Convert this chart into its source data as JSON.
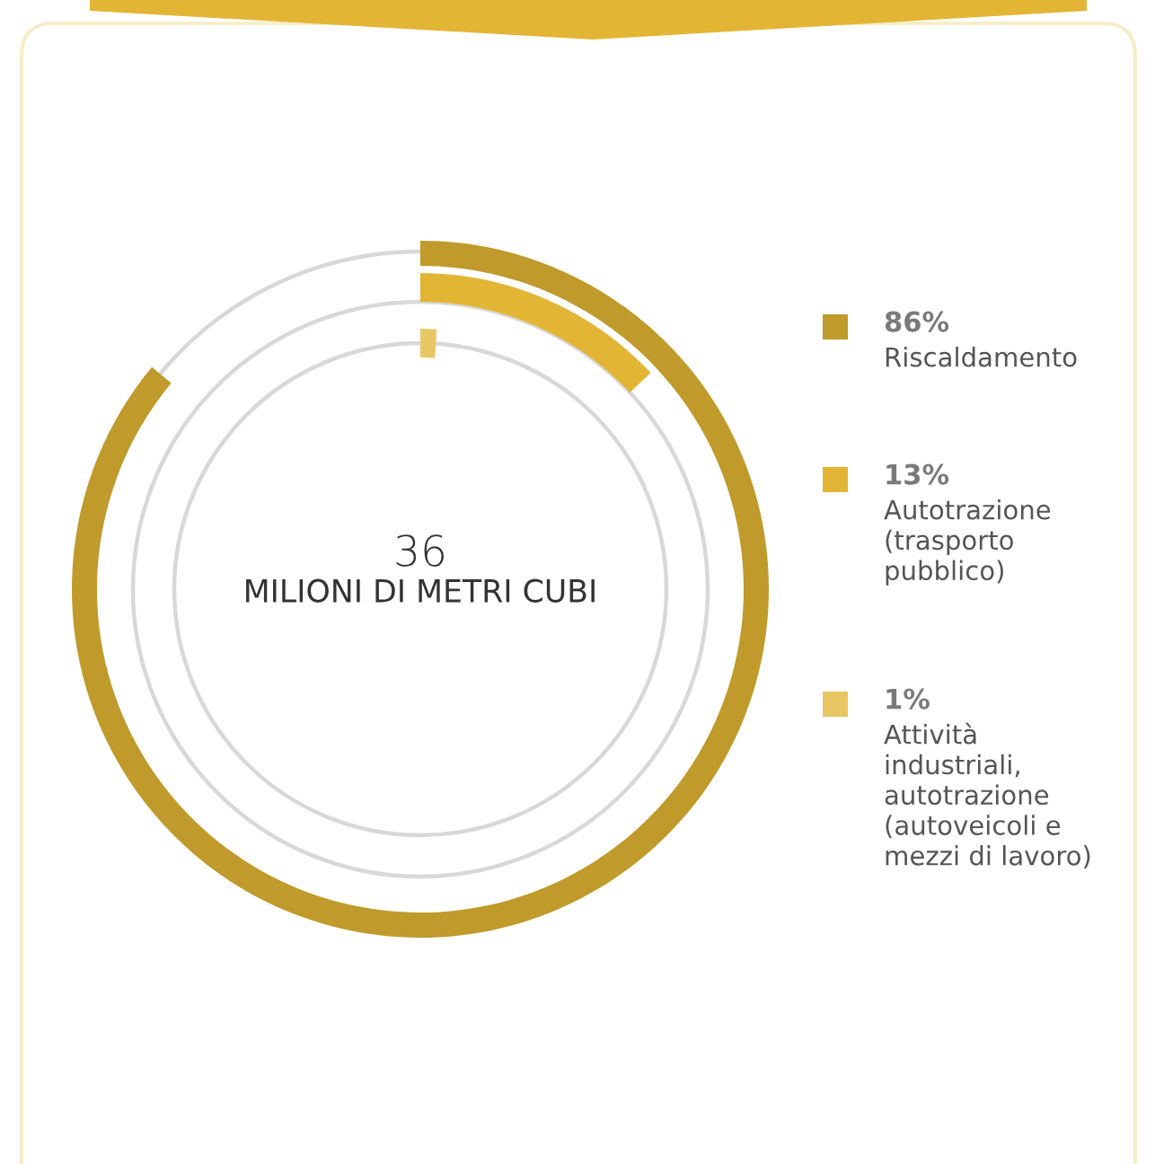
{
  "chart_data": {
    "type": "other",
    "title": "36",
    "subtitle": "MILIONI DI METRI CUBI",
    "categories": [
      "Riscaldamento",
      "Autotrazione\n(trasporto\npubblico)",
      "Attività\nindustriali,\nautotrazione\n(autoveicoli e\nmezzi di lavoro)"
    ],
    "values": [
      86,
      13,
      1
    ],
    "value_labels": [
      "86%",
      "13%",
      "1%"
    ],
    "colors": [
      "#c09a2a",
      "#e3b535",
      "#e9c664"
    ]
  }
}
